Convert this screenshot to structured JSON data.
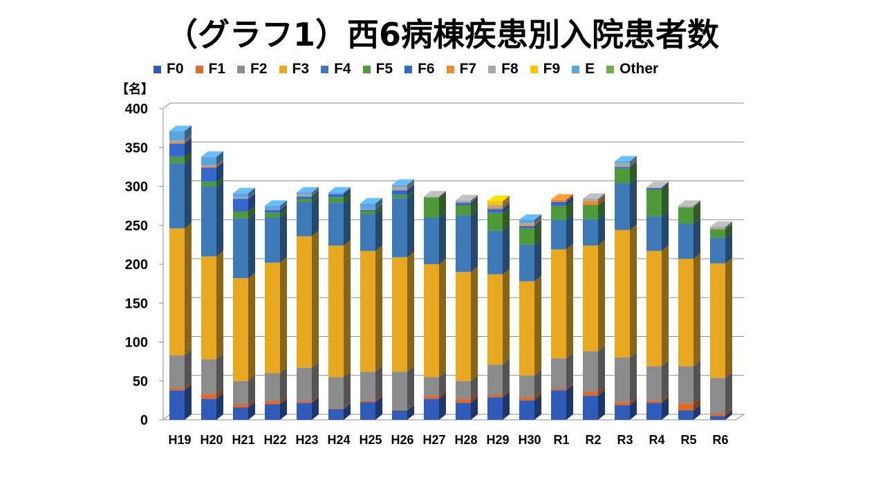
{
  "title": "（グラフ1）西6病棟疾患別入院患者数",
  "y_unit_label": "【名】",
  "chart_data": {
    "type": "bar",
    "stacked": true,
    "title": "（グラフ1）西6病棟疾患別入院患者数",
    "xlabel": "",
    "ylabel": "【名】",
    "ylim": [
      0,
      400
    ],
    "yticks": [
      0,
      50,
      100,
      150,
      200,
      250,
      300,
      350,
      400
    ],
    "grid": true,
    "legend_position": "top",
    "categories": [
      "H19",
      "H20",
      "H21",
      "H22",
      "H23",
      "H24",
      "H25",
      "H26",
      "H27",
      "H28",
      "H29",
      "H30",
      "R1",
      "R2",
      "R3",
      "R4",
      "R5",
      "R6"
    ],
    "series": [
      {
        "name": "F0",
        "color": "#2E5CB8",
        "values": [
          38,
          27,
          16,
          20,
          22,
          14,
          23,
          12,
          27,
          22,
          29,
          25,
          38,
          31,
          19,
          22,
          12,
          5
        ]
      },
      {
        "name": "F1",
        "color": "#E0692A",
        "values": [
          3,
          6,
          4,
          4,
          2,
          1,
          2,
          1,
          4,
          5,
          3,
          4,
          2,
          5,
          4,
          3,
          9,
          3
        ]
      },
      {
        "name": "F2",
        "color": "#8C8C8C",
        "values": [
          42,
          45,
          30,
          36,
          43,
          40,
          37,
          49,
          24,
          23,
          39,
          28,
          39,
          52,
          57,
          44,
          48,
          46
        ]
      },
      {
        "name": "F3",
        "color": "#E8A820",
        "values": [
          163,
          132,
          132,
          142,
          169,
          169,
          155,
          147,
          145,
          140,
          116,
          121,
          140,
          136,
          164,
          148,
          138,
          147
        ]
      },
      {
        "name": "F4",
        "color": "#3E79B8",
        "values": [
          84,
          90,
          77,
          58,
          44,
          55,
          47,
          76,
          60,
          73,
          56,
          47,
          38,
          34,
          60,
          45,
          45,
          33
        ]
      },
      {
        "name": "F5",
        "color": "#4E9A3A",
        "values": [
          8,
          6,
          9,
          6,
          4,
          7,
          4,
          4,
          26,
          13,
          23,
          21,
          18,
          18,
          19,
          34,
          21,
          11
        ]
      },
      {
        "name": "F6",
        "color": "#3468D0",
        "values": [
          17,
          18,
          16,
          4,
          3,
          4,
          2,
          6,
          0,
          3,
          5,
          3,
          5,
          0,
          2,
          2,
          0,
          0
        ]
      },
      {
        "name": "F7",
        "color": "#F08A30",
        "values": [
          2,
          2,
          0,
          0,
          0,
          0,
          0,
          0,
          0,
          0,
          2,
          2,
          3,
          5,
          0,
          0,
          0,
          0
        ]
      },
      {
        "name": "F8",
        "color": "#A8A8A8",
        "values": [
          2,
          1,
          2,
          1,
          3,
          0,
          1,
          5,
          1,
          3,
          3,
          2,
          0,
          3,
          5,
          1,
          2,
          3
        ]
      },
      {
        "name": "F9",
        "color": "#FFC400",
        "values": [
          0,
          0,
          0,
          0,
          0,
          0,
          0,
          0,
          0,
          0,
          5,
          0,
          0,
          0,
          0,
          0,
          0,
          0
        ]
      },
      {
        "name": "E",
        "color": "#5AA5DC",
        "values": [
          12,
          11,
          5,
          4,
          2,
          2,
          7,
          2,
          0,
          0,
          0,
          4,
          0,
          0,
          2,
          0,
          0,
          0
        ]
      },
      {
        "name": "Other",
        "color": "#6CB04A",
        "values": [
          0,
          0,
          0,
          0,
          0,
          0,
          0,
          0,
          0,
          0,
          0,
          0,
          0,
          0,
          0,
          0,
          0,
          0
        ]
      }
    ]
  }
}
